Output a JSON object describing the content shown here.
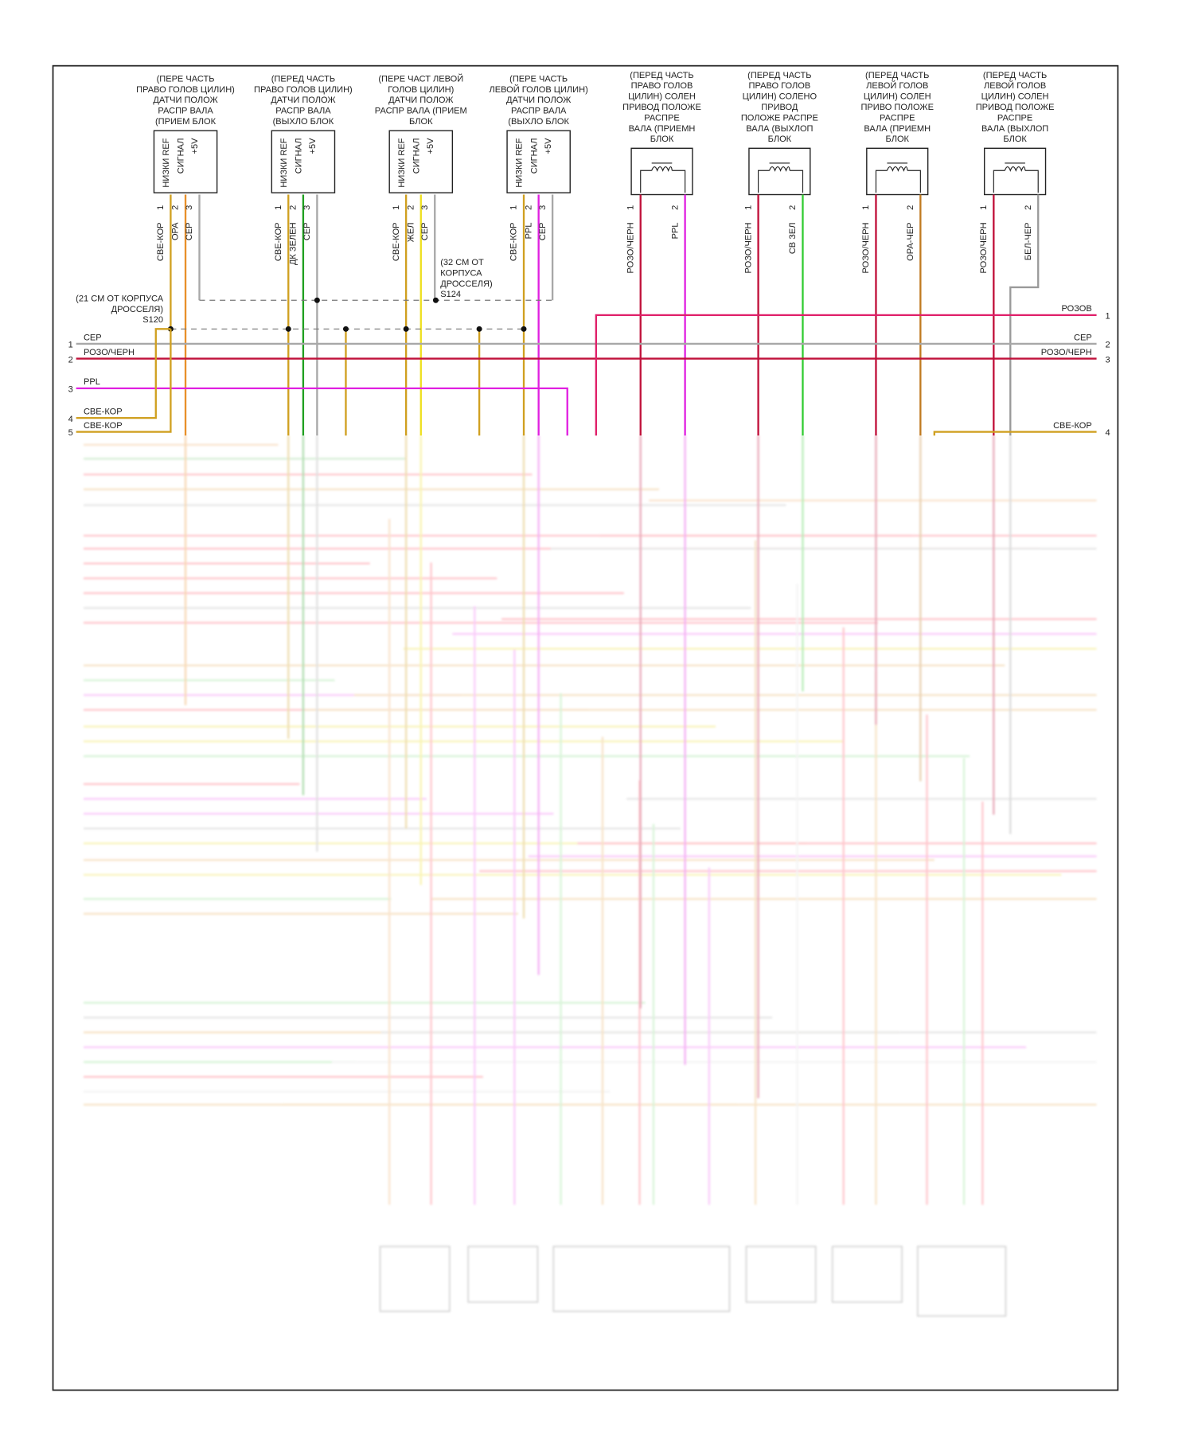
{
  "components": [
    {
      "label": [
        "(ПЕРЕ ЧАСТЬ",
        "ПРАВО ГОЛОВ ЦИЛИН)",
        "ДАТЧИ ПОЛОЖ",
        "РАСПР ВАЛА",
        "(ПРИЕМ БЛОК"
      ],
      "pins": [
        "НИЗКИ REF",
        "СИГНАЛ",
        "+5V"
      ],
      "pin_numbers": [
        "1",
        "2",
        "3"
      ],
      "wires": [
        "СВЕ-КОР",
        "ОРА",
        "СЕР"
      ]
    },
    {
      "label": [
        "(ПЕРЕД ЧАСТЬ",
        "ПРАВО ГОЛОВ ЦИЛИН)",
        "ДАТЧИ ПОЛОЖ",
        "РАСПР ВАЛА",
        "(ВЫХЛО БЛОК"
      ],
      "pins": [
        "НИЗКИ REF",
        "СИГНАЛ",
        "+5V"
      ],
      "pin_numbers": [
        "1",
        "2",
        "3"
      ],
      "wires": [
        "СВЕ-КОР",
        "ДК ЗЕЛЕН",
        "СЕР"
      ]
    },
    {
      "label": [
        "(ПЕРЕ ЧАСТ ЛЕВОЙ",
        "ГОЛОВ ЦИЛИН)",
        "ДАТЧИ ПОЛОЖ",
        "РАСПР ВАЛА (ПРИЕМ",
        "БЛОК"
      ],
      "pins": [
        "НИЗКИ REF",
        "СИГНАЛ",
        "+5V"
      ],
      "pin_numbers": [
        "1",
        "2",
        "3"
      ],
      "wires": [
        "СВЕ-КОР",
        "ЖЕЛ",
        "СЕР"
      ]
    },
    {
      "label": [
        "(ПЕРЕ ЧАСТЬ",
        "ЛЕВОЙ ГОЛОВ ЦИЛИН)",
        "ДАТЧИ ПОЛОЖ",
        "РАСПР ВАЛА",
        "(ВЫХЛО БЛОК"
      ],
      "pins": [
        "НИЗКИ REF",
        "СИГНАЛ",
        "+5V"
      ],
      "pin_numbers": [
        "1",
        "2",
        "3"
      ],
      "wires": [
        "СВЕ-КОР",
        "PPL",
        "СЕР"
      ]
    },
    {
      "label": [
        "(ПЕРЕД ЧАСТЬ",
        "ПРАВО ГОЛОВ",
        "ЦИЛИН) СОЛЕН",
        "ПРИВОД ПОЛОЖЕ",
        "РАСПРЕ",
        "ВАЛА (ПРИЕМН",
        "БЛОК"
      ],
      "pin_numbers": [
        "1",
        "2"
      ],
      "wires": [
        "РОЗО/ЧЕРН",
        "PPL"
      ]
    },
    {
      "label": [
        "(ПЕРЕД ЧАСТЬ",
        "ПРАВО ГОЛОВ",
        "ЦИЛИН) СОЛЕНО",
        "ПРИВОД",
        "ПОЛОЖЕ РАСПРЕ",
        "ВАЛА (ВЫХЛОП",
        "БЛОК"
      ],
      "pin_numbers": [
        "1",
        "2"
      ],
      "wires": [
        "РОЗО/ЧЕРН",
        "СВ ЗЕЛ"
      ]
    },
    {
      "label": [
        "(ПЕРЕД ЧАСТЬ",
        "ЛЕВОЙ ГОЛОВ",
        "ЦИЛИН) СОЛЕН",
        "ПРИВО ПОЛОЖЕ",
        "РАСПРЕ",
        "ВАЛА (ПРИЕМН",
        "БЛОК"
      ],
      "pin_numbers": [
        "1",
        "2"
      ],
      "wires": [
        "РОЗО/ЧЕРН",
        "ОРА-ЧЕР"
      ]
    },
    {
      "label": [
        "(ПЕРЕД ЧАСТЬ",
        "ЛЕВОЙ ГОЛОВ",
        "ЦИЛИН) СОЛЕН",
        "ПРИВОД ПОЛОЖЕ",
        "РАСПРЕ",
        "ВАЛА (ВЫХЛОП",
        "БЛОК"
      ],
      "pin_numbers": [
        "1",
        "2"
      ],
      "wires": [
        "РОЗО/ЧЕРН",
        "БЕЛ-ЧЕР"
      ]
    }
  ],
  "splices": [
    {
      "label": [
        "(21 СМ ОТ КОРПУСА",
        "ДРОССЕЛЯ)",
        "S120"
      ]
    },
    {
      "label": [
        "(32 СМ ОТ",
        "КОРПУСА",
        "ДРОССЕЛЯ)",
        "S124"
      ]
    }
  ],
  "left_connector": [
    {
      "number": "1",
      "wire": "СЕР"
    },
    {
      "number": "2",
      "wire": "РОЗО/ЧЕРН"
    },
    {
      "number": "3",
      "wire": "PPL"
    },
    {
      "number": "4",
      "wire": "СВЕ-КОР"
    },
    {
      "number": "5",
      "wire": "СВЕ-КОР"
    }
  ],
  "right_connector": [
    {
      "number": "1",
      "wire": "РОЗОВ"
    },
    {
      "number": "2",
      "wire": "СЕР"
    },
    {
      "number": "3",
      "wire": "РОЗО/ЧЕРН"
    },
    {
      "number": "4",
      "wire": "СВЕ-КОР"
    }
  ]
}
